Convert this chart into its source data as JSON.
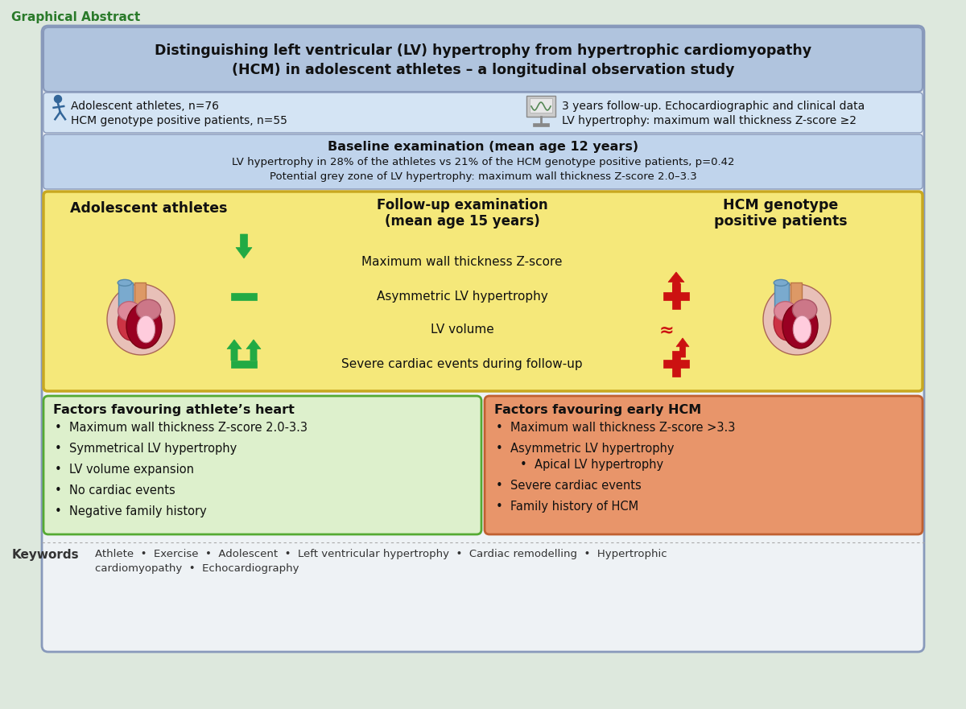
{
  "bg_color": "#dde8dd",
  "title": "Graphical Abstract",
  "title_color": "#2a7a2a",
  "main_bg": "#eef2f5",
  "main_border": "#8899bb",
  "header_bg": "#b0c4de",
  "header_text_line1": "Distinguishing left ventricular (LV) hypertrophy from hypertrophic cardiomyopathy",
  "header_text_line2": "(HCM) in adolescent athletes – a longitudinal observation study",
  "study_info_bg": "#d4e4f4",
  "study_info_left1": "Adolescent athletes, n=76",
  "study_info_left2": "HCM genotype positive patients, n=55",
  "study_info_right1": "3 years follow-up. Echocardiographic and clinical data",
  "study_info_right2": "LV hypertrophy: maximum wall thickness Z-score ≥2",
  "baseline_bg": "#c0d4ec",
  "baseline_title": "Baseline examination (mean age 12 years)",
  "baseline_line1": "LV hypertrophy in 28% of the athletes vs 21% of the HCM genotype positive patients, p=0.42",
  "baseline_line2": "Potential grey zone of LV hypertrophy: maximum wall thickness Z-score 2.0–3.3",
  "followup_bg": "#f5e87a",
  "followup_border": "#c8a820",
  "athletes_title": "Adolescent athletes",
  "followup_title_line1": "Follow-up examination",
  "followup_title_line2": "(mean age 15 years)",
  "hcm_title_line1": "HCM genotype",
  "hcm_title_line2": "positive patients",
  "followup_rows": [
    "Maximum wall thickness Z-score",
    "Asymmetric LV hypertrophy",
    "LV volume",
    "Severe cardiac events during follow-up"
  ],
  "green_box_bg": "#ddf0cc",
  "green_box_border": "#55aa33",
  "green_box_title": "Factors favouring athlete’s heart",
  "green_box_items": [
    "Maximum wall thickness Z-score 2.0-3.3",
    "Symmetrical LV hypertrophy",
    "LV volume expansion",
    "No cardiac events",
    "Negative family history"
  ],
  "orange_box_bg": "#e8956a",
  "orange_box_border": "#c06030",
  "orange_box_title": "Factors favouring early HCM",
  "orange_box_items_main": [
    "Maximum wall thickness Z-score >3.3",
    "Asymmetric LV hypertrophy",
    "Severe cardiac events",
    "Family history of HCM"
  ],
  "orange_box_sub": "Apical LV hypertrophy",
  "keywords_label": "Keywords",
  "keywords_line1": "Athlete  •  Exercise  •  Adolescent  •  Left ventricular hypertrophy  •  Cardiac remodelling  •  Hypertrophic",
  "keywords_line2": "cardiomyopathy  •  Echocardiography",
  "green_arrow_color": "#22aa44",
  "red_symbol_color": "#cc1111"
}
